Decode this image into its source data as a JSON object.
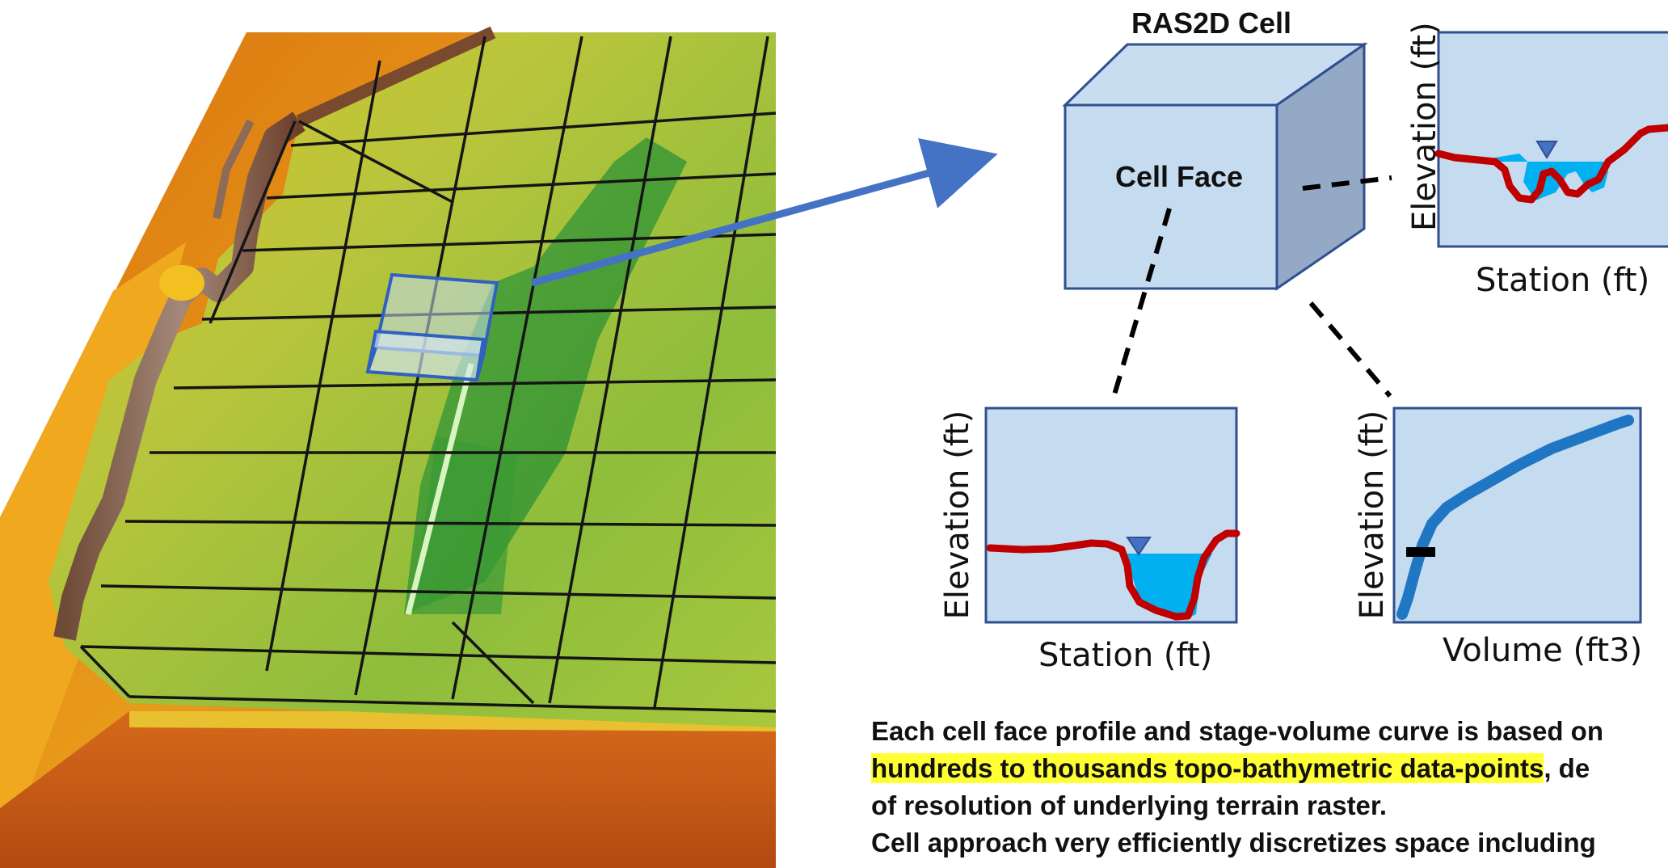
{
  "cell": {
    "title": "RAS2D Cell",
    "face_label": "Cell Face"
  },
  "plots": {
    "face_profile_side": {
      "ylabel": "Elevation (ft)",
      "xlabel": "Station (ft)"
    },
    "face_profile_bottom": {
      "ylabel": "Elevation (ft)",
      "xlabel": "Station (ft)"
    },
    "stage_volume": {
      "ylabel": "Elevation (ft)",
      "xlabel": "Volume (ft3)"
    }
  },
  "caption": {
    "line1": "Each cell face profile and stage-volume curve is based on",
    "line2_highlight": "hundreds to thousands topo-bathymetric data-points",
    "line2_rest": ", de",
    "line3": "of resolution of underlying terrain raster.",
    "line4": "Cell approach very efficiently discretizes space including"
  },
  "colors": {
    "box_fill": "#c5dbf0",
    "box_stroke": "#2f4f8f",
    "profile_red": "#c00000",
    "water_blue": "#00b0f0",
    "curve_blue": "#1f77c4",
    "arrow_blue": "#4472c4",
    "highlight": "#ffff33"
  }
}
